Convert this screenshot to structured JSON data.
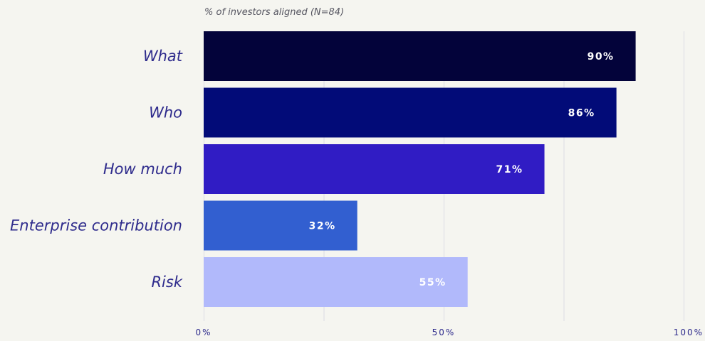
{
  "chart_data": {
    "type": "bar",
    "orientation": "horizontal",
    "subtitle": "% of investors aligned (N=84)",
    "categories": [
      "What",
      "Who",
      "How much",
      "Enterprise contribution",
      "Risk"
    ],
    "values": [
      90,
      86,
      71,
      32,
      55
    ],
    "value_labels": [
      "90%",
      "86%",
      "71%",
      "32%",
      "55%"
    ],
    "bar_colors": [
      "#03033a",
      "#020b78",
      "#301cc4",
      "#325fd0",
      "#b1b9fb"
    ],
    "xlim": [
      0,
      100
    ],
    "x_ticks": [
      0,
      50,
      100
    ],
    "x_tick_labels": [
      "0%",
      "50%",
      "100%"
    ],
    "grid": true,
    "legend": "none"
  }
}
